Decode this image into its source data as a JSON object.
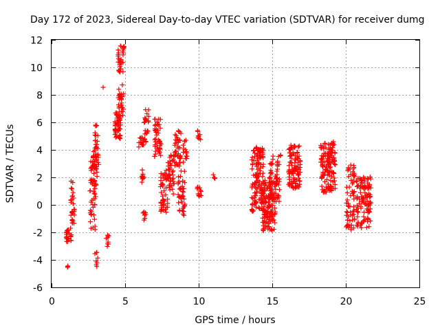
{
  "chart_data": {
    "type": "scatter",
    "title": "Day 172 of 2023, Sidereal Day-to-day VTEC variation (SDTVAR) for receiver dumg",
    "xlabel": "GPS time / hours",
    "ylabel": "SDTVAR / TECUs",
    "xlim": [
      0,
      25
    ],
    "ylim": [
      -6,
      12
    ],
    "xticks": [
      0,
      5,
      10,
      15,
      20,
      25
    ],
    "yticks": [
      -6,
      -4,
      -2,
      0,
      2,
      4,
      6,
      8,
      10,
      12
    ],
    "grid": true,
    "marker": "+",
    "color": "#ff0000",
    "series": [
      {
        "name": "SDTVAR",
        "clusters": [
          {
            "x": [
              1.0,
              1.35
            ],
            "y": [
              -2.7,
              -1.6
            ],
            "n": 24
          },
          {
            "x": [
              1.3,
              1.55
            ],
            "y": [
              -1.5,
              1.9
            ],
            "n": 30
          },
          {
            "x": [
              1.05,
              1.15
            ],
            "y": [
              -4.8,
              -4.4
            ],
            "n": 3
          },
          {
            "x": [
              2.6,
              3.0
            ],
            "y": [
              -1.8,
              3.6
            ],
            "n": 60
          },
          {
            "x": [
              2.85,
              3.2
            ],
            "y": [
              2.0,
              5.9
            ],
            "n": 40
          },
          {
            "x": [
              2.9,
              3.15
            ],
            "y": [
              -4.6,
              -3.4
            ],
            "n": 8
          },
          {
            "x": [
              3.0,
              3.05
            ],
            "y": [
              1.3,
              1.5
            ],
            "n": 2
          },
          {
            "x": [
              3.5,
              3.6
            ],
            "y": [
              8.5,
              8.7
            ],
            "n": 1
          },
          {
            "x": [
              3.7,
              3.95
            ],
            "y": [
              -3.3,
              -2.2
            ],
            "n": 8
          },
          {
            "x": [
              4.3,
              4.7
            ],
            "y": [
              4.8,
              6.8
            ],
            "n": 50
          },
          {
            "x": [
              4.45,
              4.9
            ],
            "y": [
              6.5,
              8.9
            ],
            "n": 28
          },
          {
            "x": [
              4.5,
              4.95
            ],
            "y": [
              9.6,
              11.6
            ],
            "n": 32
          },
          {
            "x": [
              5.9,
              6.25
            ],
            "y": [
              4.2,
              4.9
            ],
            "n": 14
          },
          {
            "x": [
              6.1,
              6.3
            ],
            "y": [
              1.6,
              2.7
            ],
            "n": 10
          },
          {
            "x": [
              6.2,
              6.45
            ],
            "y": [
              -1.2,
              -0.4
            ],
            "n": 8
          },
          {
            "x": [
              6.3,
              6.6
            ],
            "y": [
              4.4,
              7.0
            ],
            "n": 22
          },
          {
            "x": [
              7.0,
              7.45
            ],
            "y": [
              3.4,
              6.4
            ],
            "n": 45
          },
          {
            "x": [
              7.4,
              7.9
            ],
            "y": [
              -0.6,
              2.6
            ],
            "n": 45
          },
          {
            "x": [
              7.9,
              8.4
            ],
            "y": [
              0.2,
              3.7
            ],
            "n": 40
          },
          {
            "x": [
              8.3,
              8.8
            ],
            "y": [
              2.7,
              5.4
            ],
            "n": 40
          },
          {
            "x": [
              8.6,
              9.1
            ],
            "y": [
              -0.8,
              2.6
            ],
            "n": 40
          },
          {
            "x": [
              8.9,
              9.3
            ],
            "y": [
              3.0,
              4.7
            ],
            "n": 15
          },
          {
            "x": [
              9.8,
              10.2
            ],
            "y": [
              0.6,
              1.3
            ],
            "n": 12
          },
          {
            "x": [
              9.9,
              10.2
            ],
            "y": [
              4.6,
              5.5
            ],
            "n": 8
          },
          {
            "x": [
              10.9,
              11.1
            ],
            "y": [
              1.9,
              2.2
            ],
            "n": 3
          },
          {
            "x": [
              13.6,
              14.4
            ],
            "y": [
              -0.5,
              4.2
            ],
            "n": 130
          },
          {
            "x": [
              14.3,
              15.2
            ],
            "y": [
              -1.9,
              1.8
            ],
            "n": 120
          },
          {
            "x": [
              14.8,
              15.5
            ],
            "y": [
              0.2,
              3.6
            ],
            "n": 60
          },
          {
            "x": [
              15.5,
              15.6
            ],
            "y": [
              3.5,
              3.7
            ],
            "n": 2
          },
          {
            "x": [
              16.1,
              16.9
            ],
            "y": [
              1.2,
              4.4
            ],
            "n": 100
          },
          {
            "x": [
              18.3,
              19.3
            ],
            "y": [
              0.9,
              4.6
            ],
            "n": 140
          },
          {
            "x": [
              20.0,
              20.6
            ],
            "y": [
              -1.8,
              2.9
            ],
            "n": 60
          },
          {
            "x": [
              20.7,
              21.7
            ],
            "y": [
              -1.7,
              2.1
            ],
            "n": 110
          }
        ]
      }
    ]
  }
}
